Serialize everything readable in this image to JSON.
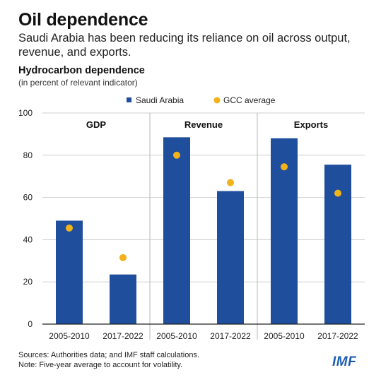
{
  "header": {
    "title": "Oil dependence",
    "subtitle": "Saudi Arabia has been reducing its reliance on oil across output, revenue, and exports."
  },
  "chart_data": {
    "type": "bar",
    "title": "Hydrocarbon dependence",
    "subtitle": "(in percent of relevant indicator)",
    "ylabel": "",
    "xlabel": "",
    "ylim": [
      0,
      100
    ],
    "yticks": [
      0,
      20,
      40,
      60,
      80,
      100
    ],
    "grid": true,
    "legend_position": "top",
    "panels": [
      "GDP",
      "Revenue",
      "Exports"
    ],
    "categories": [
      "2005-2010",
      "2017-2022",
      "2005-2010",
      "2017-2022",
      "2005-2010",
      "2017-2022"
    ],
    "series": [
      {
        "name": "Saudi Arabia",
        "kind": "bar",
        "color": "#1f4e9c",
        "values": [
          49,
          23.5,
          88.5,
          63,
          88,
          75.5
        ]
      },
      {
        "name": "GCC average",
        "kind": "point",
        "color": "#f2b21a",
        "values": [
          45.5,
          31.5,
          80,
          67,
          74.5,
          62
        ]
      }
    ]
  },
  "footer": {
    "sources": "Sources: Authorities data; and IMF staff calculations.",
    "note": "Note: Five-year average to account for volatility."
  },
  "logo": "IMF"
}
